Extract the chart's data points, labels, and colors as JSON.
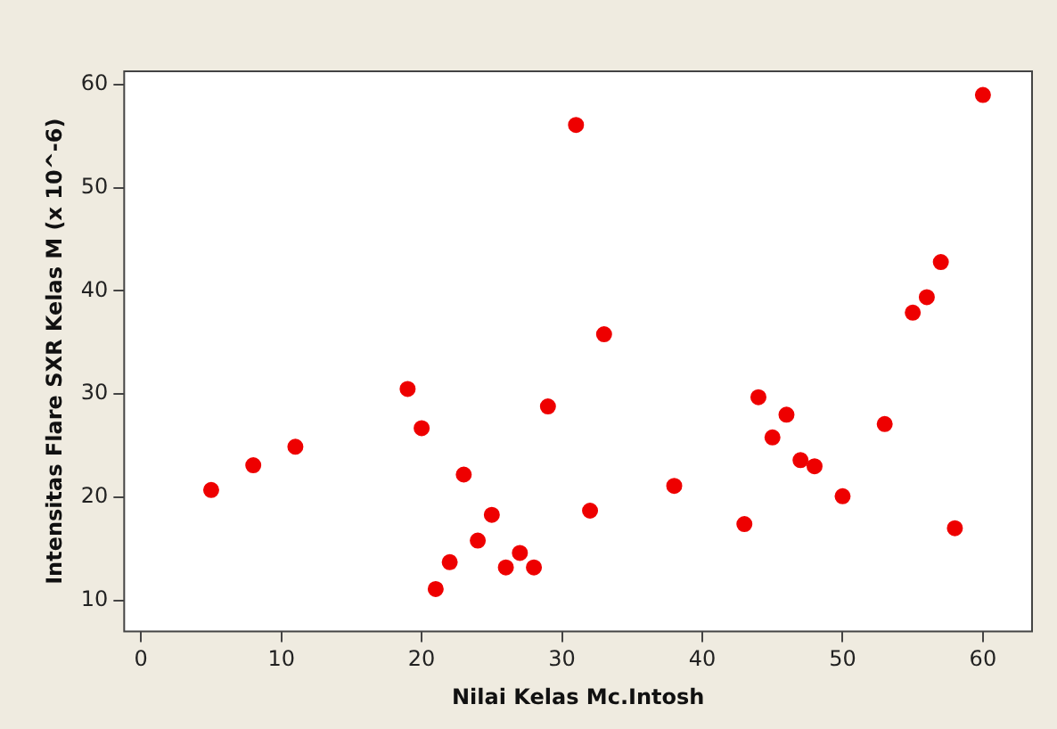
{
  "chart_data": {
    "type": "scatter",
    "xlabel": "Nilai Kelas Mc.Intosh",
    "ylabel": "Intensitas Flare SXR Kelas M (x 10^-6)",
    "x": [
      5,
      8,
      11,
      19,
      20,
      21,
      22,
      23,
      24,
      25,
      26,
      27,
      28,
      29,
      31,
      32,
      33,
      38,
      43,
      44,
      45,
      46,
      47,
      48,
      50,
      53,
      55,
      56,
      57,
      58,
      60
    ],
    "series": [
      {
        "color": "#ee0000",
        "values": [
          20.7,
          23.1,
          24.9,
          30.5,
          26.7,
          11.1,
          13.7,
          22.2,
          15.8,
          18.3,
          13.2,
          14.6,
          13.2,
          28.8,
          56.1,
          18.7,
          35.8,
          21.1,
          17.4,
          29.7,
          25.8,
          28.0,
          23.6,
          23.0,
          20.1,
          27.1,
          37.9,
          39.4,
          42.8,
          17.0,
          59.0
        ]
      }
    ],
    "xlim": [
      -1.2,
      63.5
    ],
    "ylim": [
      7,
      61.3
    ],
    "xticks": [
      0,
      10,
      20,
      30,
      40,
      50,
      60
    ],
    "yticks": [
      10,
      20,
      30,
      40,
      50,
      60
    ],
    "grid": false,
    "legend": false,
    "marker": "circle"
  }
}
